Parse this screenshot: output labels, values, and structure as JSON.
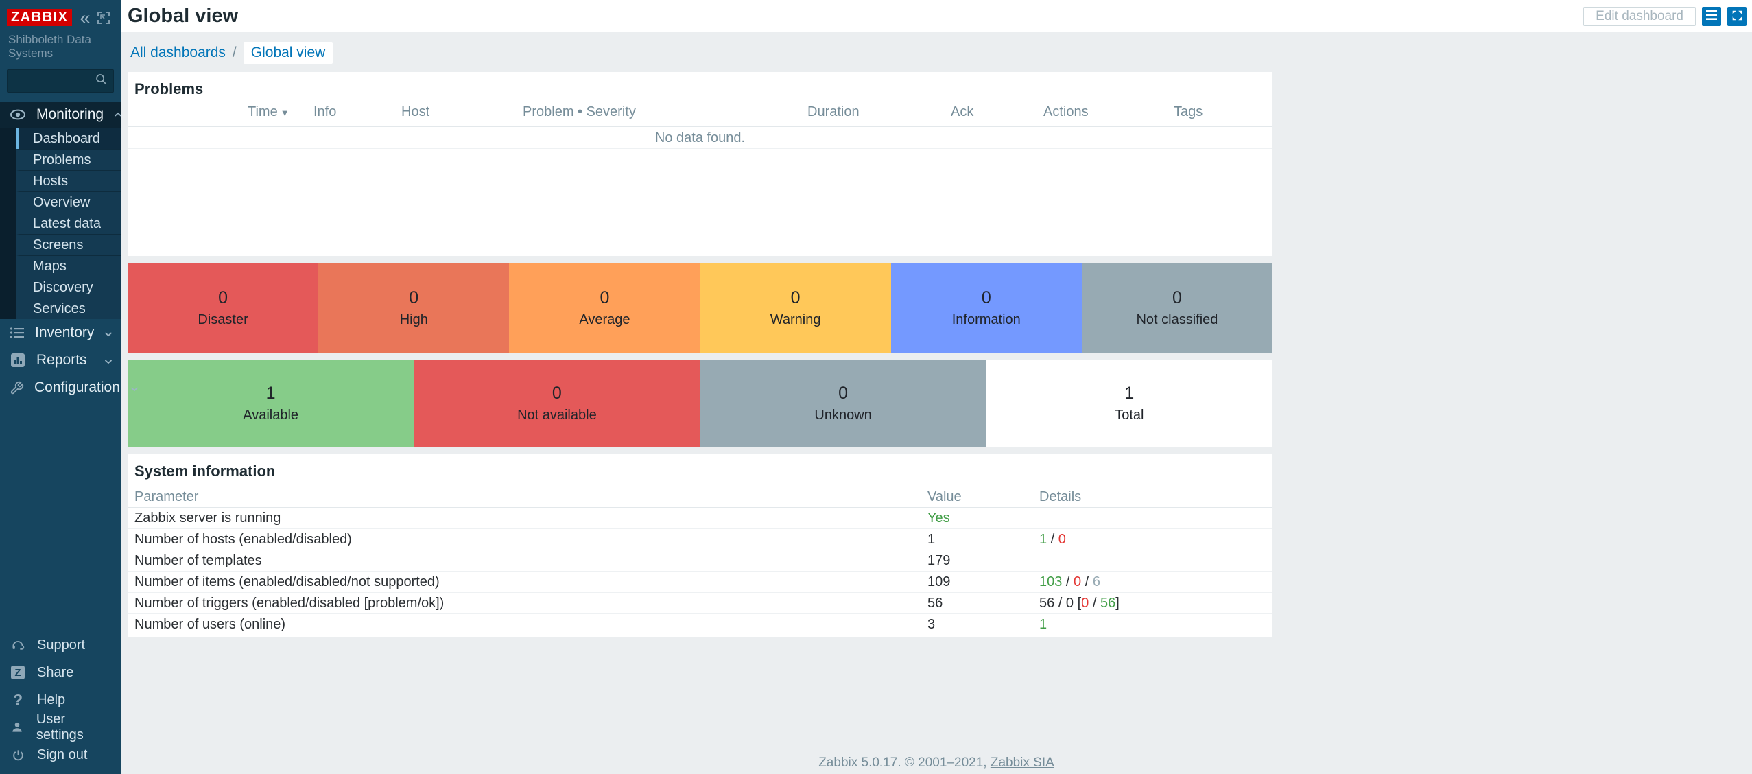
{
  "brand_color": "#d40000",
  "accent_color": "#0275b8",
  "status_colors": {
    "green": "#429e47",
    "red": "#e33734",
    "gray": "#97aab3",
    "plain": "#2b2f33"
  },
  "icons": {
    "collapse": "«",
    "help": "?",
    "share_letter": "Z",
    "sort_desc": "▼",
    "breadcrumb_sep": "/"
  },
  "sidebar": {
    "logo": "ZABBIX",
    "org": "Shibboleth Data Systems",
    "monitoring": {
      "label": "Monitoring",
      "items": [
        "Dashboard",
        "Problems",
        "Hosts",
        "Overview",
        "Latest data",
        "Screens",
        "Maps",
        "Discovery",
        "Services"
      ],
      "active_item": "Dashboard"
    },
    "sections": {
      "inventory": "Inventory",
      "reports": "Reports",
      "configuration": "Configuration"
    },
    "bottom_items": [
      "Support",
      "Share",
      "Help",
      "User settings",
      "Sign out"
    ]
  },
  "header": {
    "title": "Global view",
    "edit_button": "Edit dashboard"
  },
  "breadcrumb": {
    "parent": "All dashboards",
    "current": "Global view"
  },
  "problems_widget": {
    "title": "Problems",
    "columns": [
      "Time",
      "Info",
      "Host",
      "Problem • Severity",
      "Duration",
      "Ack",
      "Actions",
      "Tags"
    ],
    "sorted_column": "Time",
    "empty_text": "No data found."
  },
  "severity_widget": {
    "blocks": [
      {
        "count": "0",
        "label": "Disaster",
        "color": "#e45959"
      },
      {
        "count": "0",
        "label": "High",
        "color": "#e97659"
      },
      {
        "count": "0",
        "label": "Average",
        "color": "#ffa059"
      },
      {
        "count": "0",
        "label": "Warning",
        "color": "#ffc859"
      },
      {
        "count": "0",
        "label": "Information",
        "color": "#7499ff"
      },
      {
        "count": "0",
        "label": "Not classified",
        "color": "#97aab3"
      }
    ]
  },
  "availability_widget": {
    "blocks": [
      {
        "count": "1",
        "label": "Available",
        "color": "#86cc89"
      },
      {
        "count": "0",
        "label": "Not available",
        "color": "#e45959"
      },
      {
        "count": "0",
        "label": "Unknown",
        "color": "#97aab3"
      },
      {
        "count": "1",
        "label": "Total",
        "color": "#ffffff"
      }
    ]
  },
  "system_info": {
    "title": "System information",
    "columns": [
      "Parameter",
      "Value",
      "Details"
    ],
    "rows": [
      {
        "parameter": "Zabbix server is running",
        "value": "Yes",
        "value_color": "green",
        "details": []
      },
      {
        "parameter": "Number of hosts (enabled/disabled)",
        "value": "1",
        "details": [
          {
            "t": "1",
            "c": "green"
          },
          {
            "t": " / "
          },
          {
            "t": "0",
            "c": "red"
          }
        ]
      },
      {
        "parameter": "Number of templates",
        "value": "179",
        "details": []
      },
      {
        "parameter": "Number of items (enabled/disabled/not supported)",
        "value": "109",
        "details": [
          {
            "t": "103",
            "c": "green"
          },
          {
            "t": " / "
          },
          {
            "t": "0",
            "c": "red"
          },
          {
            "t": " / "
          },
          {
            "t": "6",
            "c": "gray"
          }
        ]
      },
      {
        "parameter": "Number of triggers (enabled/disabled [problem/ok])",
        "value": "56",
        "details": [
          {
            "t": "56 / 0 ["
          },
          {
            "t": "0",
            "c": "red"
          },
          {
            "t": " / "
          },
          {
            "t": "56",
            "c": "green"
          },
          {
            "t": "]"
          }
        ]
      },
      {
        "parameter": "Number of users (online)",
        "value": "3",
        "details": [
          {
            "t": "1",
            "c": "green"
          }
        ]
      }
    ]
  },
  "footer": {
    "text": "Zabbix 5.0.17. © 2001–2021, ",
    "link_label": "Zabbix SIA"
  }
}
